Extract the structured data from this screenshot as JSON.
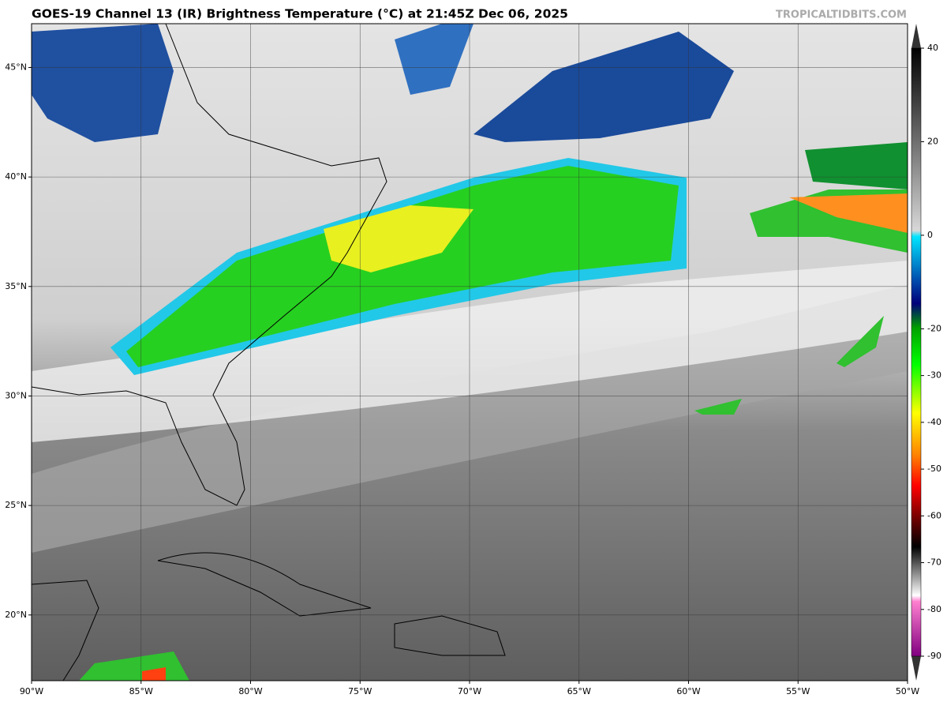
{
  "header": {
    "title": "GOES-19 Channel 13 (IR) Brightness Temperature (°C) at 21:45Z Dec 06, 2025",
    "watermark": "TROPICALTIDBITS.COM"
  },
  "map": {
    "xlim": [
      -90,
      -50
    ],
    "ylim": [
      17,
      47
    ],
    "grid": true,
    "xticks": [
      {
        "value": -90,
        "label": "90°W"
      },
      {
        "value": -85,
        "label": "85°W"
      },
      {
        "value": -80,
        "label": "80°W"
      },
      {
        "value": -75,
        "label": "75°W"
      },
      {
        "value": -70,
        "label": "70°W"
      },
      {
        "value": -65,
        "label": "65°W"
      },
      {
        "value": -60,
        "label": "60°W"
      },
      {
        "value": -55,
        "label": "55°W"
      },
      {
        "value": -50,
        "label": "50°W"
      }
    ],
    "yticks": [
      {
        "value": 20,
        "label": "20°N"
      },
      {
        "value": 25,
        "label": "25°N"
      },
      {
        "value": 30,
        "label": "30°N"
      },
      {
        "value": 35,
        "label": "35°N"
      },
      {
        "value": 40,
        "label": "40°N"
      },
      {
        "value": 45,
        "label": "45°N"
      }
    ]
  },
  "colorbar": {
    "lim": [
      -90,
      40
    ],
    "ticks": [
      40,
      20,
      0,
      -20,
      -30,
      -40,
      -50,
      -60,
      -70,
      -80,
      -90
    ]
  }
}
